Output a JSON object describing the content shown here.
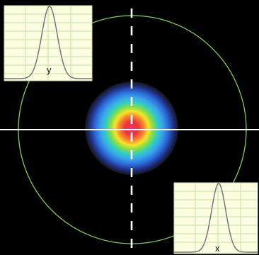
{
  "profiles": {
    "y_label": "y",
    "x_label": "x"
  },
  "colors": {
    "background": "#000000",
    "crosshair": "#ffffff",
    "aperture_circle": "#7fd24a",
    "panel_fill": "#fbfde0",
    "panel_grid": "#c8e0a4",
    "profile_curve": "#777777"
  },
  "beam": {
    "colormap": "rainbow-jet",
    "peak_color": "#ff2050"
  }
}
